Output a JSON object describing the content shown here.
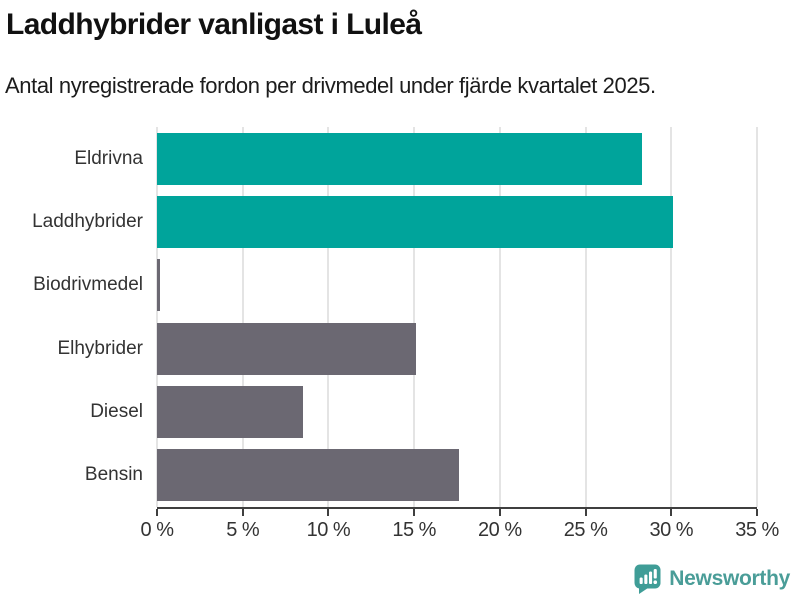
{
  "header": {
    "title": "Laddhybrider vanligast i Luleå",
    "subtitle": "Antal nyregistrerade fordon per drivmedel under fjärde kvartalet 2025."
  },
  "chart_data": {
    "type": "bar",
    "orientation": "horizontal",
    "title": "Laddhybrider vanligast i Luleå",
    "xlabel": "",
    "ylabel": "",
    "unit": "%",
    "categories": [
      "Eldrivna",
      "Laddhybrider",
      "Biodrivmedel",
      "Elhybrider",
      "Diesel",
      "Bensin"
    ],
    "values": [
      28.3,
      30.1,
      0.2,
      15.1,
      8.5,
      17.6
    ],
    "bar_colors": [
      "#00a49b",
      "#00a49b",
      "#6b6872",
      "#6b6872",
      "#6b6872",
      "#6b6872"
    ],
    "highlight_color": "#00a49b",
    "base_color": "#6b6872",
    "xlim": [
      0,
      35
    ],
    "ticks": [
      0,
      5,
      10,
      15,
      20,
      25,
      30,
      35
    ],
    "tick_labels": [
      "0 %",
      "5 %",
      "10 %",
      "15 %",
      "20 %",
      "25 %",
      "30 %",
      "35 %"
    ],
    "grid": true,
    "gridline_color": "#e4e4e4",
    "axis_color": "#3f3f3f",
    "legend": "none"
  },
  "footer": {
    "brand": "Newsworthy",
    "brand_color": "#4a9d98",
    "logo_icon": "bar-chart-speech-bubble-icon"
  }
}
